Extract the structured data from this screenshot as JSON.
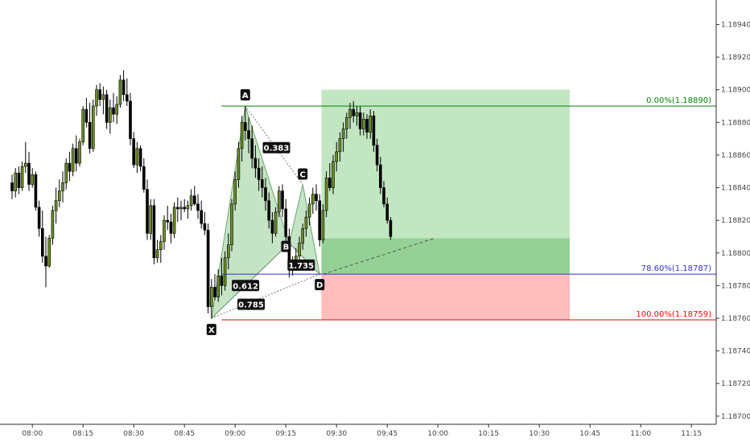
{
  "chart_data": {
    "type": "candlestick",
    "title": "",
    "ylim": [
      1.18695,
      1.18955
    ],
    "y_ticks": [
      "1.18940",
      "1.18920",
      "1.18900",
      "1.18880",
      "1.18860",
      "1.18840",
      "1.18820",
      "1.18800",
      "1.18780",
      "1.18760",
      "1.18740",
      "1.18720",
      "1.18700"
    ],
    "x_ticks": [
      "08:00",
      "08:15",
      "08:30",
      "08:45",
      "09:00",
      "09:15",
      "09:30",
      "09:45",
      "10:00",
      "10:15",
      "10:30",
      "10:45",
      "11:00",
      "11:15"
    ],
    "x_start": "07:54",
    "bar_minutes": 1,
    "colors": {
      "up_body": "#6b8e23",
      "down_body": "#000000",
      "wick": "#000000",
      "pattern_fill": "#8cc78c",
      "profit_zone": "#8fd18f",
      "stop_zone": "#ffb6b6",
      "fib_0": "#008000",
      "fib_786": "#3333cc",
      "fib_100": "#ff0000"
    },
    "ohlc": [
      [
        1.18843,
        1.18848,
        1.18833,
        1.18838
      ],
      [
        1.18838,
        1.18852,
        1.18834,
        1.18849
      ],
      [
        1.18849,
        1.18853,
        1.18836,
        1.1884
      ],
      [
        1.1884,
        1.18856,
        1.18838,
        1.18853
      ],
      [
        1.18853,
        1.18868,
        1.18849,
        1.18855
      ],
      [
        1.18855,
        1.18862,
        1.18838,
        1.18842
      ],
      [
        1.18842,
        1.18852,
        1.1884,
        1.18848
      ],
      [
        1.18848,
        1.1885,
        1.18826,
        1.18828
      ],
      [
        1.18828,
        1.18832,
        1.1881,
        1.18815
      ],
      [
        1.18815,
        1.18826,
        1.18794,
        1.18798
      ],
      [
        1.18798,
        1.1881,
        1.18779,
        1.18792
      ],
      [
        1.18792,
        1.18811,
        1.18791,
        1.18809
      ],
      [
        1.18809,
        1.18829,
        1.18805,
        1.18826
      ],
      [
        1.18826,
        1.1884,
        1.18818,
        1.18832
      ],
      [
        1.18832,
        1.18845,
        1.18828,
        1.18838
      ],
      [
        1.18838,
        1.1885,
        1.18831,
        1.18843
      ],
      [
        1.18843,
        1.18858,
        1.18839,
        1.18855
      ],
      [
        1.18855,
        1.18862,
        1.18844,
        1.1885
      ],
      [
        1.1885,
        1.18867,
        1.18847,
        1.18864
      ],
      [
        1.18864,
        1.18872,
        1.1885,
        1.18855
      ],
      [
        1.18855,
        1.1887,
        1.18853,
        1.18868
      ],
      [
        1.18868,
        1.1889,
        1.18866,
        1.18888
      ],
      [
        1.18888,
        1.18895,
        1.18877,
        1.1888
      ],
      [
        1.1888,
        1.18892,
        1.18861,
        1.18864
      ],
      [
        1.18864,
        1.18894,
        1.18862,
        1.1889
      ],
      [
        1.1889,
        1.18903,
        1.18884,
        1.189
      ],
      [
        1.189,
        1.18904,
        1.1889,
        1.18894
      ],
      [
        1.18894,
        1.18902,
        1.18885,
        1.18897
      ],
      [
        1.18897,
        1.189,
        1.18876,
        1.1888
      ],
      [
        1.1888,
        1.18894,
        1.18873,
        1.18889
      ],
      [
        1.18889,
        1.18898,
        1.1888,
        1.18885
      ],
      [
        1.18885,
        1.18896,
        1.18879,
        1.18891
      ],
      [
        1.18891,
        1.18909,
        1.18889,
        1.18906
      ],
      [
        1.18906,
        1.18912,
        1.18893,
        1.18897
      ],
      [
        1.18897,
        1.18907,
        1.1889,
        1.18893
      ],
      [
        1.18893,
        1.18898,
        1.18866,
        1.1887
      ],
      [
        1.1887,
        1.18874,
        1.18852,
        1.18854
      ],
      [
        1.18854,
        1.18868,
        1.18849,
        1.18864
      ],
      [
        1.18864,
        1.18866,
        1.1885,
        1.18853
      ],
      [
        1.18853,
        1.18858,
        1.18837,
        1.18839
      ],
      [
        1.18839,
        1.18845,
        1.18808,
        1.18812
      ],
      [
        1.18812,
        1.18833,
        1.18808,
        1.18829
      ],
      [
        1.18829,
        1.18833,
        1.18793,
        1.18797
      ],
      [
        1.18797,
        1.18808,
        1.18794,
        1.18802
      ],
      [
        1.18802,
        1.18811,
        1.18794,
        1.18807
      ],
      [
        1.18807,
        1.18823,
        1.18802,
        1.1882
      ],
      [
        1.1882,
        1.18829,
        1.18814,
        1.18819
      ],
      [
        1.18819,
        1.18824,
        1.18806,
        1.18812
      ],
      [
        1.18812,
        1.18831,
        1.18809,
        1.18828
      ],
      [
        1.18828,
        1.18834,
        1.18819,
        1.18827
      ],
      [
        1.18827,
        1.18832,
        1.1882,
        1.18828
      ],
      [
        1.18828,
        1.18833,
        1.18825,
        1.18827
      ],
      [
        1.18827,
        1.18832,
        1.18821,
        1.18829
      ],
      [
        1.18829,
        1.18839,
        1.18826,
        1.18835
      ],
      [
        1.18835,
        1.18841,
        1.18829,
        1.1883
      ],
      [
        1.1883,
        1.18836,
        1.18821,
        1.18826
      ],
      [
        1.18826,
        1.18832,
        1.18815,
        1.18818
      ],
      [
        1.18818,
        1.18825,
        1.18811,
        1.18814
      ],
      [
        1.18814,
        1.18818,
        1.18763,
        1.18767
      ],
      [
        1.18767,
        1.18784,
        1.1876,
        1.18779
      ],
      [
        1.18779,
        1.18787,
        1.18771,
        1.18773
      ],
      [
        1.18773,
        1.1879,
        1.1877,
        1.18786
      ],
      [
        1.18786,
        1.18797,
        1.18774,
        1.1878
      ],
      [
        1.1878,
        1.18801,
        1.18777,
        1.18797
      ],
      [
        1.18797,
        1.18812,
        1.1879,
        1.18805
      ],
      [
        1.18805,
        1.18833,
        1.18801,
        1.1883
      ],
      [
        1.1883,
        1.1885,
        1.18826,
        1.18845
      ],
      [
        1.18845,
        1.18868,
        1.1884,
        1.18864
      ],
      [
        1.18864,
        1.18884,
        1.18856,
        1.1888
      ],
      [
        1.1888,
        1.1889,
        1.18869,
        1.18875
      ],
      [
        1.18875,
        1.18883,
        1.18861,
        1.1887
      ],
      [
        1.1887,
        1.18878,
        1.18852,
        1.18858
      ],
      [
        1.18858,
        1.18866,
        1.18846,
        1.18852
      ],
      [
        1.18852,
        1.18858,
        1.18838,
        1.18845
      ],
      [
        1.18845,
        1.18853,
        1.18834,
        1.1884
      ],
      [
        1.1884,
        1.18846,
        1.18826,
        1.18832
      ],
      [
        1.18832,
        1.18837,
        1.18815,
        1.1882
      ],
      [
        1.1882,
        1.18825,
        1.18806,
        1.18812
      ],
      [
        1.18812,
        1.18828,
        1.1881,
        1.18825
      ],
      [
        1.18825,
        1.18841,
        1.18822,
        1.18838
      ],
      [
        1.18838,
        1.18842,
        1.18822,
        1.18827
      ],
      [
        1.18827,
        1.18833,
        1.18806,
        1.1881
      ],
      [
        1.1881,
        1.18815,
        1.18785,
        1.1879
      ],
      [
        1.1879,
        1.18798,
        1.18786,
        1.18794
      ],
      [
        1.18794,
        1.18803,
        1.18789,
        1.18798
      ],
      [
        1.18798,
        1.1881,
        1.18796,
        1.18806
      ],
      [
        1.18806,
        1.18818,
        1.18802,
        1.18815
      ],
      [
        1.18815,
        1.18826,
        1.1881,
        1.18822
      ],
      [
        1.18822,
        1.18834,
        1.18817,
        1.1883
      ],
      [
        1.1883,
        1.1884,
        1.18824,
        1.18836
      ],
      [
        1.18836,
        1.18842,
        1.18826,
        1.18832
      ],
      [
        1.18832,
        1.18836,
        1.18804,
        1.18808
      ],
      [
        1.18808,
        1.1883,
        1.18806,
        1.18826
      ],
      [
        1.18826,
        1.1885,
        1.18822,
        1.18846
      ],
      [
        1.18846,
        1.18855,
        1.18838,
        1.1884
      ],
      [
        1.1884,
        1.1886,
        1.18836,
        1.18856
      ],
      [
        1.18856,
        1.18868,
        1.1885,
        1.18862
      ],
      [
        1.18862,
        1.18874,
        1.18856,
        1.1887
      ],
      [
        1.1887,
        1.1888,
        1.18862,
        1.18876
      ],
      [
        1.18876,
        1.18886,
        1.1887,
        1.18883
      ],
      [
        1.18883,
        1.18892,
        1.18876,
        1.18888
      ],
      [
        1.18888,
        1.18893,
        1.1888,
        1.18884
      ],
      [
        1.18884,
        1.1889,
        1.18878,
        1.18886
      ],
      [
        1.18886,
        1.1889,
        1.18872,
        1.18876
      ],
      [
        1.18876,
        1.18886,
        1.18872,
        1.18882
      ],
      [
        1.18882,
        1.18885,
        1.1887,
        1.18874
      ],
      [
        1.18874,
        1.18888,
        1.1887,
        1.18884
      ],
      [
        1.18884,
        1.18887,
        1.18862,
        1.18866
      ],
      [
        1.18866,
        1.1887,
        1.1885,
        1.18854
      ],
      [
        1.18854,
        1.18859,
        1.18836,
        1.1884
      ],
      [
        1.1884,
        1.18844,
        1.18828,
        1.1883
      ],
      [
        1.1883,
        1.18834,
        1.18818,
        1.1882
      ],
      [
        1.1882,
        1.18822,
        1.18808,
        1.1881
      ]
    ],
    "points": [
      {
        "label": "X",
        "bar": 59,
        "price": 1.1876
      },
      {
        "label": "A",
        "bar": 69,
        "price": 1.1889
      },
      {
        "label": "B",
        "bar": 82,
        "price": 1.18806
      },
      {
        "label": "C",
        "bar": 86,
        "price": 1.18842
      },
      {
        "label": "D",
        "bar": 91,
        "price": 1.18787
      }
    ],
    "ratios": [
      {
        "label": "0.383",
        "from": "A",
        "to": "C"
      },
      {
        "label": "0.612",
        "from": "X",
        "to": "B"
      },
      {
        "label": "1.735",
        "from": "B",
        "to": "D"
      },
      {
        "label": "0.785",
        "from": "X",
        "to": "D"
      }
    ],
    "position": {
      "entry": 1.18787,
      "target": 1.189,
      "stop": 1.18759,
      "current": 1.18809,
      "start_bar": 92,
      "end_bar": 165
    },
    "levels": [
      {
        "label": "0.00%(1.18890)",
        "price": 1.1889,
        "color": "#008000",
        "start_bar": 62
      },
      {
        "label": "78.60%(1.18787)",
        "price": 1.18787,
        "color": "#3333cc",
        "start_bar": 62
      },
      {
        "label": "100.00%(1.18759)",
        "price": 1.18759,
        "color": "#ff0000",
        "start_bar": 62
      }
    ],
    "progress_line": {
      "from_bar": 92,
      "from_price": 1.18787,
      "to_bar": 125,
      "to_price": 1.18809
    }
  }
}
